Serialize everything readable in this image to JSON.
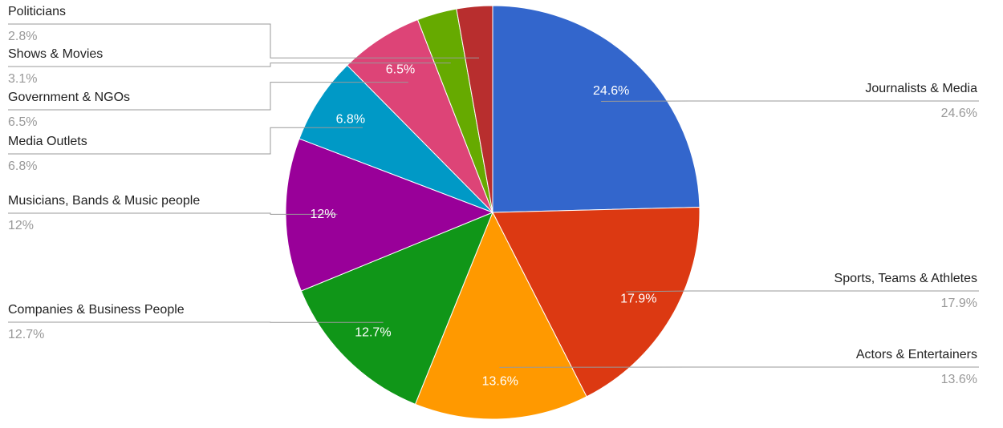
{
  "chart_data": {
    "type": "pie",
    "categories": [
      "Journalists & Media",
      "Sports, Teams & Athletes",
      "Actors & Entertainers",
      "Companies & Business People",
      "Musicians, Bands & Music people",
      "Media Outlets",
      "Government & NGOs",
      "Shows & Movies",
      "Politicians"
    ],
    "values": [
      24.6,
      17.9,
      13.6,
      12.7,
      12,
      6.8,
      6.5,
      3.1,
      2.8
    ],
    "value_labels": [
      "24.6%",
      "17.9%",
      "13.6%",
      "12.7%",
      "12%",
      "6.8%",
      "6.5%",
      "3.1%",
      "2.8%"
    ],
    "colors": [
      "#3366cc",
      "#dc3912",
      "#ff9900",
      "#109618",
      "#990099",
      "#0099c6",
      "#dd4477",
      "#66aa00",
      "#b82e2e"
    ]
  }
}
